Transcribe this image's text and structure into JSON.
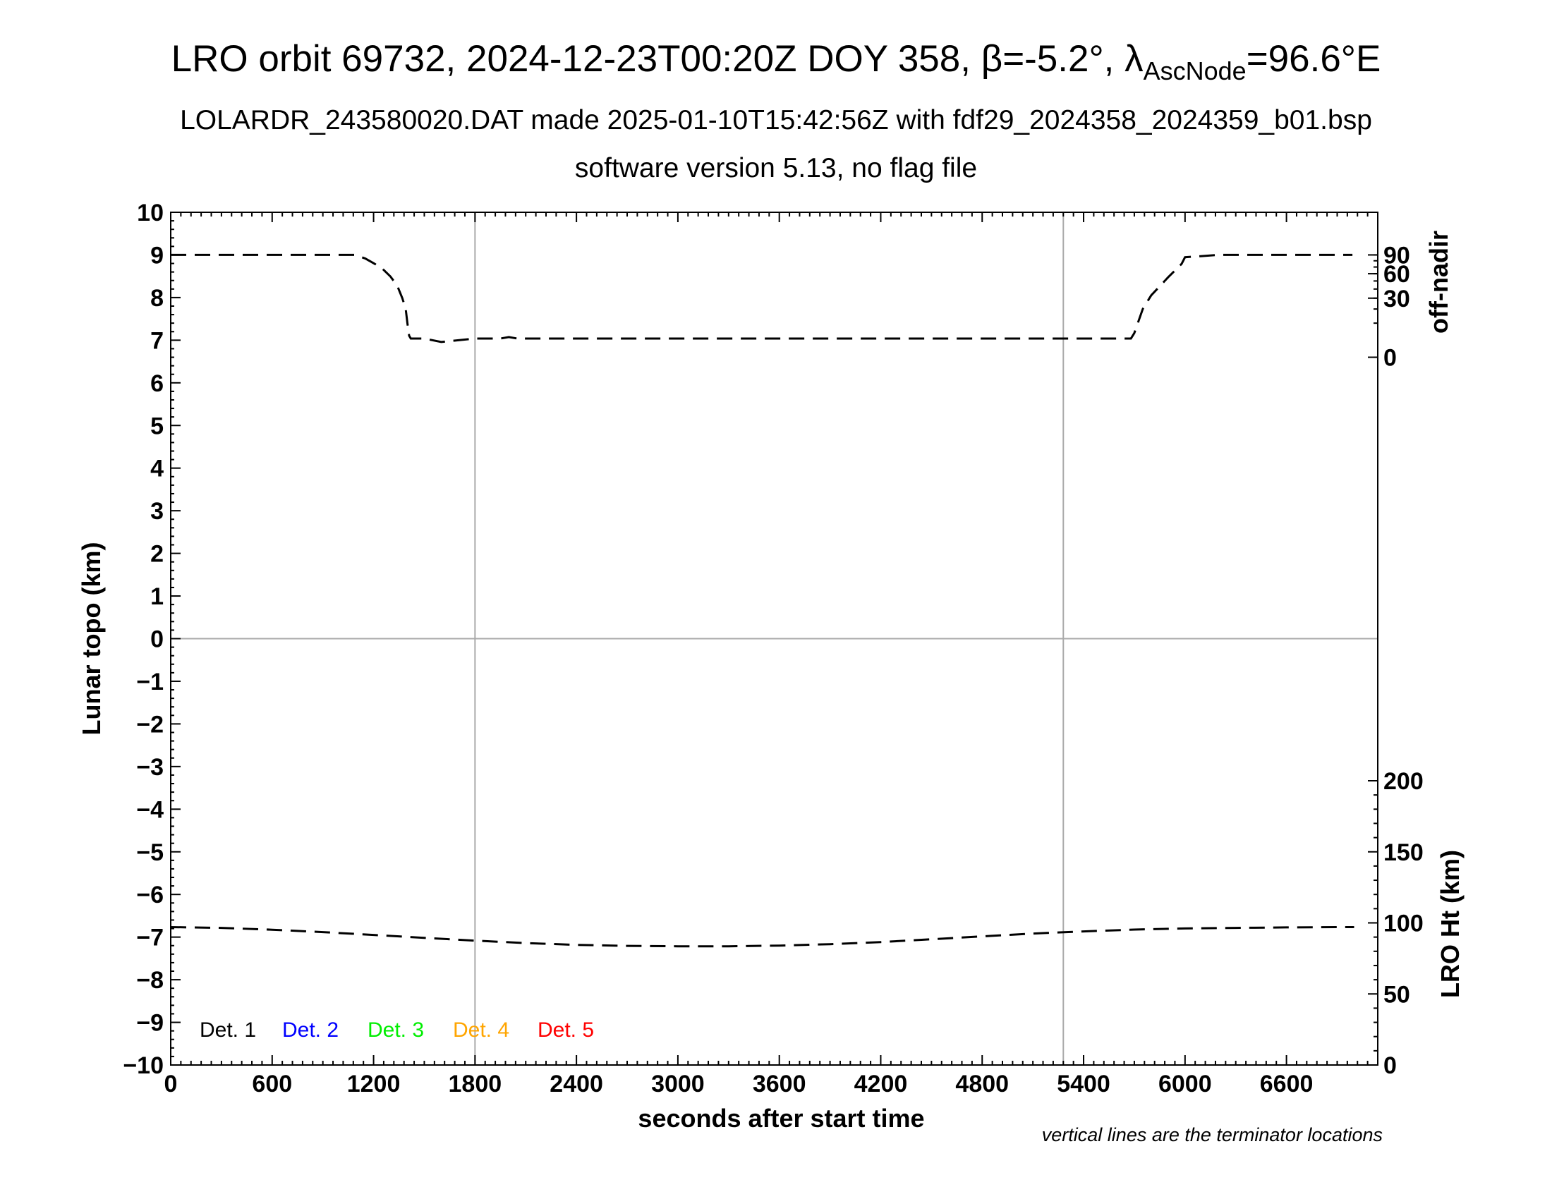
{
  "titles": {
    "main_prefix": "LRO orbit 69732, 2024-12-23T00:20Z DOY 358, β=-5.2°, λ",
    "main_sub": "AscNode",
    "main_suffix": "=96.6°E",
    "line2": "LOLARDR_243580020.DAT made 2025-01-10T15:42:56Z with fdf29_2024358_2024359_b01.bsp",
    "line3": "software version 5.13, no flag file"
  },
  "colors": {
    "det1": "#000000",
    "det2": "#0000ff",
    "det3": "#00ee00",
    "det4": "#ffa500",
    "det5": "#ff0000",
    "terminator": "#aaaaaa"
  },
  "chart_data": {
    "type": "line",
    "xlabel": "seconds after start time",
    "ylabel_left": "Lunar topo (km)",
    "ylabel_right_top": "off-nadir",
    "ylabel_right_bottom": "LRO Ht (km)",
    "note": "vertical lines are the terminator locations",
    "xlim": [
      0,
      7140
    ],
    "ylim_left": [
      -10,
      10
    ],
    "x_ticks": [
      "0",
      "600",
      "1200",
      "1800",
      "2400",
      "3000",
      "3600",
      "4200",
      "4800",
      "5400",
      "6000",
      "6600"
    ],
    "y_ticks_left": [
      "10",
      "9",
      "8",
      "7",
      "6",
      "5",
      "4",
      "3",
      "2",
      "1",
      "0",
      "−1",
      "−2",
      "−3",
      "−4",
      "−5",
      "−6",
      "−7",
      "−8",
      "−9",
      "−10"
    ],
    "y_ticks_right_top": [
      "90",
      "60",
      "30",
      "0"
    ],
    "y_ticks_right_bottom": [
      "200",
      "150",
      "100",
      "50",
      "0"
    ],
    "terminators_x": [
      1800,
      5280
    ],
    "legend": [
      "Det. 1",
      "Det. 2",
      "Det. 3",
      "Det. 4",
      "Det. 5"
    ],
    "series": [
      {
        "name": "off-nadir",
        "x": [
          0,
          300,
          600,
          900,
          1090,
          1150,
          1200,
          1250,
          1300,
          1340,
          1370,
          1390,
          1400,
          1410,
          1420,
          1500,
          1600,
          1800,
          1950,
          2000,
          2050,
          2200,
          3000,
          4000,
          5000,
          5600,
          5640,
          5650,
          5680,
          5700,
          5750,
          5800,
          5900,
          5980,
          6000,
          6050,
          6100,
          6200,
          6400,
          6800,
          6990
        ],
        "y": [
          90,
          90,
          90,
          90,
          90,
          84,
          76,
          68,
          56,
          44,
          30,
          20,
          10,
          4,
          3,
          3,
          2,
          3,
          3,
          3.5,
          3,
          3,
          3,
          3,
          3,
          3,
          3,
          3,
          3,
          5,
          20,
          33,
          55,
          75,
          86,
          87,
          88,
          90,
          90,
          90,
          90
        ]
      },
      {
        "name": "LRO Ht",
        "x": [
          0,
          300,
          600,
          900,
          1200,
          1500,
          1800,
          2100,
          2400,
          2700,
          3000,
          3300,
          3600,
          3900,
          4200,
          4500,
          4800,
          5100,
          5400,
          5700,
          6000,
          6300,
          6600,
          6900,
          7000
        ],
        "y": [
          97,
          96.5,
          95.2,
          93.5,
          91.5,
          89.5,
          87.5,
          85.8,
          84.5,
          83.8,
          83.5,
          83.5,
          84,
          85,
          86.5,
          88.5,
          90.5,
          92.5,
          94,
          95.3,
          96.1,
          96.5,
          96.8,
          97,
          97
        ]
      }
    ]
  }
}
